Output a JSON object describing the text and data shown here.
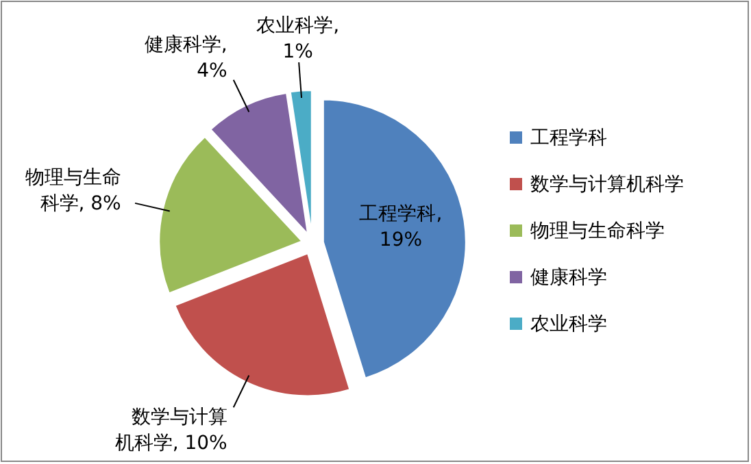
{
  "chart_data": {
    "type": "pie",
    "categories": [
      "工程学科",
      "数学与计算机科学",
      "物理与生命科学",
      "健康科学",
      "农业科学"
    ],
    "values": [
      19,
      10,
      8,
      4,
      1
    ],
    "colors": [
      "#4f81bd",
      "#c0504d",
      "#9bbb59",
      "#8064a2",
      "#4bacc6"
    ],
    "value_labels": [
      "工程学科, 19%",
      "数学与计算机科学, 10%",
      "物理与生命科学, 8%",
      "健康科学, 4%",
      "农业科学, 1%"
    ],
    "legend": "right"
  }
}
